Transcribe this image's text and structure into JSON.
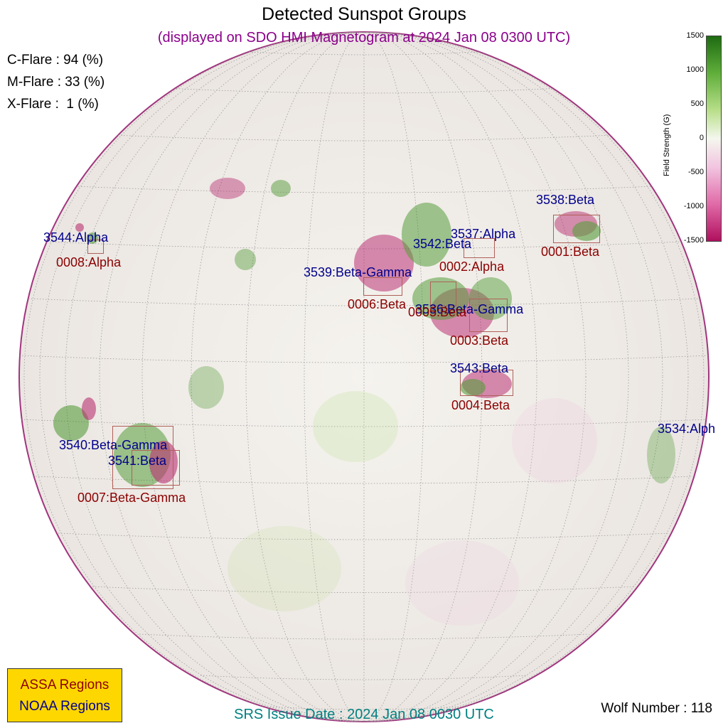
{
  "title": "Detected Sunspot Groups",
  "subtitle": "(displayed on SDO HMI Magnetogram at 2024 Jan 08 0300 UTC)",
  "flares": [
    {
      "label": "C-Flare : 94 (%)"
    },
    {
      "label": "M-Flare : 33 (%)"
    },
    {
      "label": "X-Flare :  1 (%)"
    }
  ],
  "colorbar": {
    "label": "Field Strength (G)",
    "ticks": [
      "1500",
      "1000",
      "500",
      "0",
      "-500",
      "-1000",
      "-1500"
    ],
    "colors": {
      "positive": "#1e6b12",
      "neutral": "#f4f7ee",
      "negative": "#b0105e"
    }
  },
  "noaa_regions": [
    {
      "label": "3538:Beta"
    },
    {
      "label": "3537:Alpha"
    },
    {
      "label": "3542:Beta"
    },
    {
      "label": "3539:Beta-Gamma"
    },
    {
      "label": "3536:Beta-Gamma"
    },
    {
      "label": "3543:Beta"
    },
    {
      "label": "3544:Alpha"
    },
    {
      "label": "3540:Beta-Gamma"
    },
    {
      "label": "3541:Beta"
    },
    {
      "label": "3534:Alph"
    }
  ],
  "assa_regions": [
    {
      "label": "0001:Beta"
    },
    {
      "label": "0002:Alpha"
    },
    {
      "label": "0006:Beta"
    },
    {
      "label": "0005:Beta"
    },
    {
      "label": "0003:Beta"
    },
    {
      "label": "0004:Beta"
    },
    {
      "label": "0008:Alpha"
    },
    {
      "label": "0007:Beta-Gamma"
    }
  ],
  "legend": {
    "assa": "ASSA Regions",
    "noaa": "NOAA Regions"
  },
  "srs_issue": "SRS Issue Date : 2024 Jan 08 0030 UTC",
  "wolf_number": "Wolf Number : 118",
  "colors": {
    "noaa": "#00008b",
    "assa": "#8b0000",
    "subtitle": "#8b008b",
    "srs": "#008080"
  }
}
